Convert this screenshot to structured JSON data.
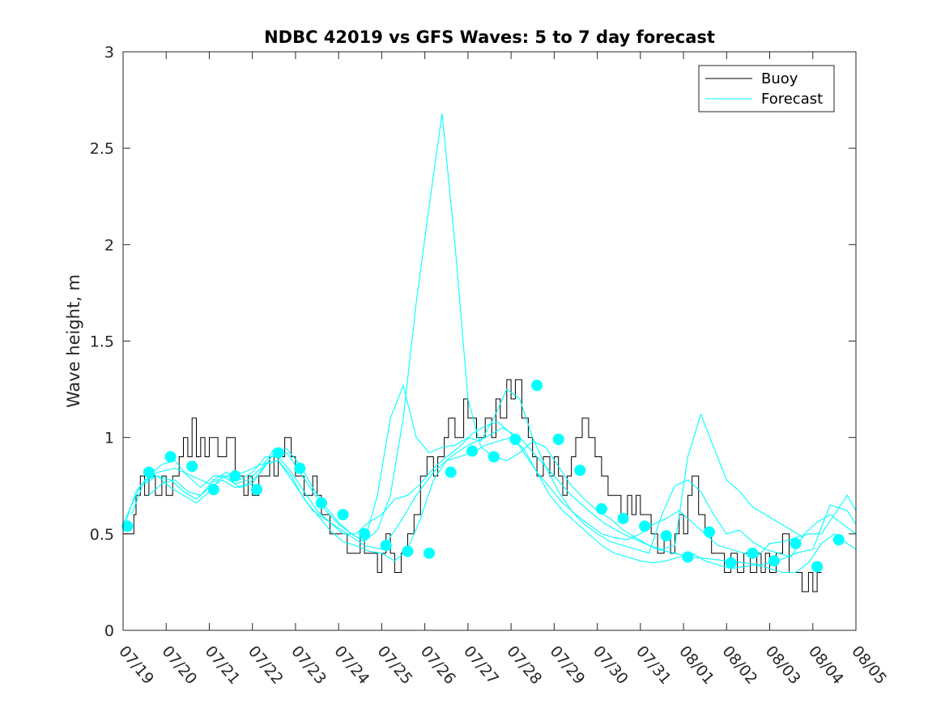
{
  "chart_data": {
    "type": "line",
    "title": "NDBC 42019 vs GFS Waves: 5 to 7 day forecast",
    "xlabel": "",
    "ylabel": "Wave height, m",
    "ylim": [
      0,
      3
    ],
    "xlim": [
      0,
      17
    ],
    "x_tick_labels": [
      "07/19",
      "07/20",
      "07/21",
      "07/22",
      "07/23",
      "07/24",
      "07/25",
      "07/26",
      "07/27",
      "07/28",
      "07/29",
      "07/30",
      "07/31",
      "08/01",
      "08/02",
      "08/03",
      "08/04",
      "08/05"
    ],
    "y_ticks": [
      0,
      0.5,
      1,
      1.5,
      2,
      2.5,
      3
    ],
    "y_tick_labels": [
      "0",
      "0.5",
      "1",
      "1.5",
      "2",
      "2.5",
      "3"
    ],
    "x_unit": "days since 07/19 00:00",
    "grid": false,
    "legend": {
      "position": "top-right",
      "entries": [
        "Buoy",
        "Forecast"
      ]
    },
    "colors": {
      "buoy": "#000000",
      "forecast": "#00ffff",
      "axes": "#262626"
    },
    "series": [
      {
        "name": "Buoy",
        "x": [
          0,
          0.25,
          0.3,
          0.4,
          0.5,
          0.6,
          0.75,
          0.9,
          1,
          1.15,
          1.3,
          1.4,
          1.5,
          1.6,
          1.7,
          1.8,
          1.9,
          2,
          2.2,
          2.4,
          2.6,
          2.8,
          2.9,
          3,
          3.15,
          3.3,
          3.4,
          3.5,
          3.6,
          3.75,
          3.9,
          4,
          4.2,
          4.4,
          4.5,
          4.6,
          4.8,
          5,
          5.2,
          5.4,
          5.5,
          5.6,
          5.8,
          5.9,
          6,
          6.1,
          6.2,
          6.3,
          6.45,
          6.6,
          6.75,
          6.9,
          7.05,
          7.2,
          7.3,
          7.45,
          7.55,
          7.7,
          7.9,
          8,
          8.2,
          8.4,
          8.55,
          8.65,
          8.75,
          8.9,
          9,
          9.1,
          9.25,
          9.4,
          9.5,
          9.6,
          9.75,
          9.9,
          10,
          10.1,
          10.2,
          10.3,
          10.4,
          10.5,
          10.65,
          10.8,
          10.95,
          11.1,
          11.25,
          11.4,
          11.55,
          11.7,
          11.8,
          11.9,
          12,
          12.1,
          12.25,
          12.4,
          12.55,
          12.7,
          12.8,
          12.9,
          13,
          13.1,
          13.2,
          13.35,
          13.5,
          13.65,
          13.8,
          13.95,
          14.1,
          14.25,
          14.4,
          14.55,
          14.7,
          14.8,
          14.9,
          15,
          15.15,
          15.3,
          15.45,
          15.6,
          15.75,
          15.9,
          16,
          16.1,
          16.2
        ],
        "y": [
          0.5,
          0.6,
          0.7,
          0.8,
          0.7,
          0.8,
          0.7,
          0.8,
          0.7,
          0.8,
          0.9,
          1.0,
          0.9,
          1.1,
          0.9,
          1.0,
          0.9,
          1.0,
          0.9,
          1.0,
          0.8,
          0.7,
          0.8,
          0.7,
          0.8,
          0.8,
          0.9,
          0.8,
          0.9,
          1.0,
          0.9,
          0.8,
          0.7,
          0.8,
          0.7,
          0.6,
          0.5,
          0.5,
          0.4,
          0.4,
          0.5,
          0.4,
          0.4,
          0.3,
          0.4,
          0.5,
          0.4,
          0.3,
          0.4,
          0.5,
          0.6,
          0.8,
          0.9,
          0.8,
          0.9,
          1.0,
          1.1,
          1.0,
          1.2,
          1.1,
          1.0,
          1.1,
          1.0,
          1.2,
          1.1,
          1.3,
          1.2,
          1.3,
          1.1,
          1.0,
          0.9,
          0.8,
          0.9,
          0.8,
          0.9,
          0.8,
          0.7,
          0.8,
          0.9,
          1.0,
          1.1,
          1.0,
          0.9,
          0.8,
          0.7,
          0.7,
          0.6,
          0.7,
          0.6,
          0.7,
          0.6,
          0.6,
          0.5,
          0.4,
          0.5,
          0.4,
          0.5,
          0.6,
          0.5,
          0.7,
          0.8,
          0.6,
          0.5,
          0.4,
          0.4,
          0.3,
          0.4,
          0.3,
          0.4,
          0.3,
          0.4,
          0.3,
          0.4,
          0.3,
          0.4,
          0.5,
          0.3,
          0.3,
          0.2,
          0.3,
          0.2,
          0.3,
          0.3
        ]
      },
      {
        "name": "",
        "x": [
          0,
          0.3,
          0.6,
          0.9,
          1.2,
          1.5,
          1.8,
          2.1,
          2.4,
          2.7,
          3,
          3.3,
          3.6,
          3.9,
          4.2,
          4.5,
          4.8,
          5.1,
          5.4,
          5.7,
          6,
          6.3,
          6.6,
          6.9,
          7.2,
          7.5,
          7.8,
          8.1,
          8.4,
          8.7,
          9,
          9.3,
          9.6,
          9.9,
          10.2,
          10.5,
          10.8,
          11.1,
          11.4,
          11.7,
          12,
          12.3,
          12.6,
          12.9,
          13.2,
          13.5,
          13.8,
          14.1,
          14.4,
          14.7,
          15,
          15.3,
          15.6,
          15.9,
          16.2,
          16.5,
          16.8,
          17
        ],
        "y": [
          0.52,
          0.72,
          0.8,
          0.86,
          0.88,
          0.8,
          0.74,
          0.8,
          0.8,
          0.74,
          0.76,
          0.86,
          0.88,
          0.8,
          0.68,
          0.6,
          0.52,
          0.46,
          0.44,
          0.41,
          0.4,
          0.36,
          0.42,
          0.58,
          0.78,
          0.88,
          0.9,
          0.92,
          0.96,
          0.98,
          1.0,
          0.94,
          0.82,
          0.7,
          0.62,
          0.56,
          0.5,
          0.44,
          0.4,
          0.38,
          0.36,
          0.35,
          0.36,
          0.38,
          0.4,
          0.36,
          0.34,
          0.32,
          0.33,
          0.34,
          0.32,
          0.3,
          0.3,
          0.35,
          0.45,
          0.5,
          0.45,
          0.42
        ]
      },
      {
        "name": "",
        "x": [
          0,
          0.4,
          0.8,
          1.2,
          1.6,
          2,
          2.4,
          2.8,
          3.2,
          3.6,
          4,
          4.4,
          4.8,
          5.2,
          5.6,
          6,
          6.4,
          6.8,
          7.2,
          7.6,
          8,
          8.4,
          8.8,
          9.2,
          9.6,
          10,
          10.4,
          10.8,
          11.2,
          11.6,
          12,
          12.4,
          12.8,
          13.2,
          13.6,
          14,
          14.4,
          14.8,
          15.2,
          15.6,
          16,
          16.4,
          16.8,
          17
        ],
        "y": [
          0.55,
          0.75,
          0.82,
          0.84,
          0.8,
          0.76,
          0.8,
          0.82,
          0.86,
          0.88,
          0.75,
          0.62,
          0.56,
          0.5,
          0.44,
          0.42,
          0.55,
          0.7,
          0.82,
          0.9,
          0.96,
          1.0,
          1.05,
          1.0,
          0.9,
          0.8,
          0.7,
          0.62,
          0.55,
          0.5,
          0.46,
          0.42,
          0.4,
          0.38,
          0.37,
          0.36,
          0.35,
          0.34,
          0.36,
          0.4,
          0.42,
          0.65,
          0.62,
          0.55
        ]
      },
      {
        "name": "",
        "x": [
          0.6,
          0.9,
          1.2,
          1.5,
          1.8,
          2.1,
          2.4,
          2.7,
          3,
          3.3,
          3.6,
          3.9,
          4.2,
          4.5,
          4.8,
          5.1,
          5.4,
          5.7,
          6,
          6.3,
          6.6,
          6.9,
          7.2,
          7.5,
          7.8,
          8.1,
          8.4,
          8.7,
          9,
          9.3,
          9.6,
          9.9,
          10.2,
          10.5,
          10.8,
          11.1,
          11.4,
          11.7,
          12,
          12.3,
          12.6,
          12.9,
          13.2,
          13.5,
          13.8,
          14.1,
          14.4,
          14.7,
          15,
          15.3,
          15.6,
          15.9,
          16.2,
          16.5,
          16.8,
          17
        ],
        "y": [
          0.7,
          0.76,
          0.78,
          0.72,
          0.7,
          0.78,
          0.82,
          0.78,
          0.82,
          0.9,
          0.9,
          0.82,
          0.72,
          0.62,
          0.56,
          0.5,
          0.5,
          0.56,
          0.6,
          0.68,
          0.7,
          0.76,
          0.84,
          0.9,
          0.95,
          1.02,
          1.06,
          1.08,
          1.02,
          0.92,
          0.82,
          0.74,
          0.66,
          0.6,
          0.55,
          0.5,
          0.48,
          0.47,
          0.5,
          0.55,
          0.58,
          0.62,
          0.56,
          0.5,
          0.44,
          0.42,
          0.4,
          0.38,
          0.45,
          0.46,
          0.48,
          0.5,
          0.5,
          0.6,
          0.7,
          0.62
        ]
      },
      {
        "name": "",
        "x": [
          0.2,
          0.5,
          0.8,
          1.1,
          1.4,
          1.7,
          2,
          2.3,
          2.6,
          2.9,
          3.2,
          3.5,
          3.8,
          4.1,
          4.4,
          4.7,
          5,
          5.3,
          5.6,
          5.9,
          6.2,
          6.5,
          6.8,
          7.1,
          7.4,
          7.7,
          8,
          8.3,
          8.6,
          8.9,
          9.2,
          9.5,
          9.8,
          10.1,
          10.4,
          10.7,
          11,
          11.3,
          11.6,
          11.9,
          12.2,
          12.5,
          12.8,
          13.1,
          13.4,
          13.7,
          14,
          14.3,
          14.6,
          14.9,
          15.2,
          15.5,
          15.8
        ],
        "y": [
          0.6,
          0.78,
          0.8,
          0.74,
          0.7,
          0.66,
          0.72,
          0.8,
          0.76,
          0.78,
          0.84,
          0.94,
          0.94,
          0.86,
          0.74,
          0.64,
          0.56,
          0.5,
          0.46,
          0.52,
          0.7,
          1.1,
          1.7,
          2.2,
          2.68,
          2.0,
          1.2,
          0.95,
          0.9,
          0.88,
          0.92,
          0.98,
          0.95,
          0.85,
          0.75,
          0.68,
          0.62,
          0.58,
          0.52,
          0.48,
          0.44,
          0.42,
          0.44,
          0.9,
          1.12,
          0.95,
          0.78,
          0.72,
          0.64,
          0.6,
          0.56,
          0.52,
          0.48
        ]
      },
      {
        "name": "",
        "x": [
          0.5,
          0.8,
          1.1,
          1.4,
          1.7,
          2,
          2.3,
          2.6,
          2.9,
          3.2,
          3.5,
          3.8,
          4.1,
          4.4,
          4.7,
          5,
          5.3,
          5.6,
          5.9,
          6.2,
          6.5,
          6.8,
          7.1,
          7.4,
          7.7,
          8,
          8.3,
          8.6,
          8.9,
          9.2,
          9.5,
          9.8,
          10.1,
          10.4,
          10.7,
          11,
          11.3,
          11.6,
          11.9,
          12.2,
          12.5,
          12.8,
          13.1,
          13.4,
          13.7,
          14,
          14.3,
          14.6,
          14.9,
          15.2,
          15.5,
          15.8,
          16.1,
          16.4,
          16.7,
          17
        ],
        "y": [
          0.76,
          0.8,
          0.78,
          0.72,
          0.68,
          0.74,
          0.78,
          0.74,
          0.76,
          0.82,
          0.92,
          0.92,
          0.82,
          0.72,
          0.62,
          0.55,
          0.5,
          0.46,
          0.7,
          1.1,
          1.27,
          1.0,
          0.92,
          0.95,
          0.96,
          1.0,
          0.98,
          1.1,
          1.25,
          1.2,
          1.0,
          0.85,
          0.72,
          0.62,
          0.55,
          0.5,
          0.46,
          0.44,
          0.42,
          0.4,
          0.6,
          0.75,
          0.78,
          0.72,
          0.6,
          0.5,
          0.52,
          0.46,
          0.42,
          0.4,
          0.38,
          0.5,
          0.56,
          0.6,
          0.55,
          0.5
        ]
      }
    ],
    "markers": {
      "name": "Forecast",
      "x": [
        0.1,
        0.6,
        1.1,
        1.6,
        2.1,
        2.6,
        3.1,
        3.6,
        4.1,
        4.6,
        5.1,
        5.6,
        6.1,
        6.6,
        7.1,
        7.6,
        8.1,
        8.6,
        9.1,
        9.6,
        10.1,
        10.6,
        11.1,
        11.6,
        12.1,
        12.6,
        13.1,
        13.6,
        14.1,
        14.6,
        15.1,
        15.6,
        16.1,
        16.6
      ],
      "y": [
        0.54,
        0.82,
        0.9,
        0.85,
        0.73,
        0.8,
        0.73,
        0.92,
        0.84,
        0.66,
        0.6,
        0.5,
        0.44,
        0.41,
        0.4,
        0.82,
        0.93,
        0.9,
        0.99,
        1.27,
        0.99,
        0.83,
        0.63,
        0.58,
        0.54,
        0.49,
        0.38,
        0.51,
        0.35,
        0.4,
        0.36,
        0.45,
        0.33,
        0.47
      ]
    }
  }
}
